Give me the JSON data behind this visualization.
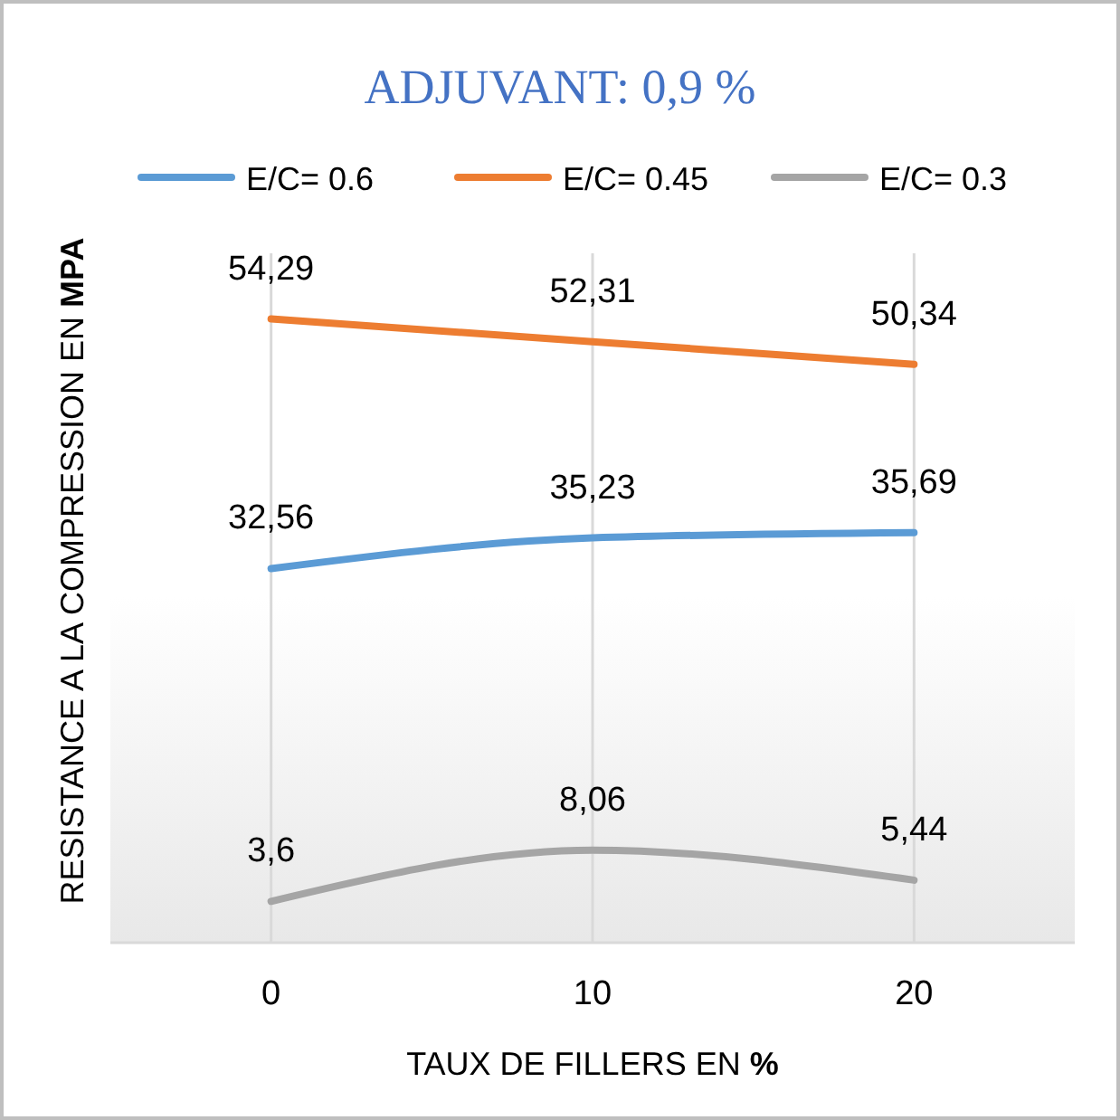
{
  "chart_data": {
    "type": "line",
    "title": "ADJUVANT: 0,9 %",
    "xlabel": "TAUX DE FILLERS EN %",
    "ylabel": "RESISTANCE A LA COMPRESSION EN MPA",
    "categories": [
      "0",
      "10",
      "20"
    ],
    "ylim": [
      0,
      60
    ],
    "grid": "x",
    "legend": "top",
    "data_labels": true,
    "marker": "none",
    "series": [
      {
        "name": "E/C= 0.6",
        "color": "#5b9bd5",
        "values": [
          32.56,
          35.23,
          35.69
        ],
        "value_labels": [
          "32,56",
          "35,23",
          "35,69"
        ]
      },
      {
        "name": "E/C= 0.45",
        "color": "#ed7d31",
        "values": [
          54.29,
          52.31,
          50.34
        ],
        "value_labels": [
          "54,29",
          "52,31",
          "50,34"
        ]
      },
      {
        "name": "E/C= 0.3",
        "color": "#a5a5a5",
        "values": [
          3.6,
          8.06,
          5.44
        ],
        "value_labels": [
          "3,6",
          "8,06",
          "5,44"
        ]
      }
    ]
  }
}
